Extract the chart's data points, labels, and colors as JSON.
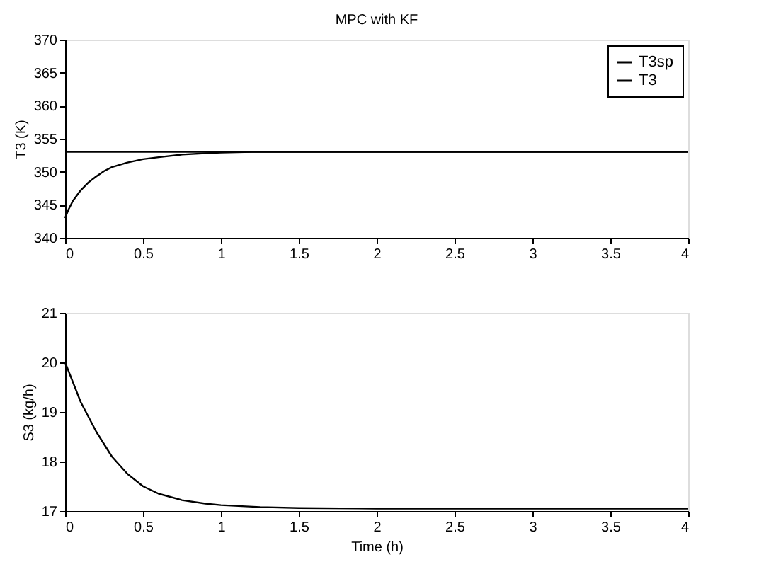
{
  "chart_data": [
    {
      "type": "line",
      "title": "MPC with KF",
      "ylabel": "T3 (K)",
      "xlim": [
        0,
        4
      ],
      "xticks": [
        0,
        0.5,
        1,
        1.5,
        2,
        2.5,
        3,
        3.5,
        4
      ],
      "ylim": [
        340,
        370
      ],
      "yticks": [
        340,
        345,
        350,
        355,
        360,
        365,
        370
      ],
      "legend": "top right",
      "grid": false,
      "series": [
        {
          "name": "T3sp",
          "color": "#000000",
          "x": [
            0,
            4
          ],
          "values": [
            353,
            353
          ]
        },
        {
          "name": "T3",
          "color": "#000000",
          "x": [
            0,
            0.02,
            0.05,
            0.1,
            0.15,
            0.2,
            0.25,
            0.3,
            0.4,
            0.5,
            0.6,
            0.75,
            0.9,
            1,
            1.2,
            1.5,
            4
          ],
          "values": [
            343,
            344.2,
            345.6,
            347.2,
            348.4,
            349.3,
            350.1,
            350.7,
            351.4,
            351.9,
            352.2,
            352.6,
            352.8,
            352.9,
            353,
            353,
            353
          ]
        }
      ]
    },
    {
      "type": "line",
      "xlabel": "Time (h)",
      "ylabel": "S3 (kg/h)",
      "xlim": [
        0,
        4
      ],
      "xticks": [
        0,
        0.5,
        1,
        1.5,
        2,
        2.5,
        3,
        3.5,
        4
      ],
      "ylim": [
        17,
        21
      ],
      "yticks": [
        17,
        18,
        19,
        20,
        21
      ],
      "grid": false,
      "series": [
        {
          "color": "#000000",
          "x": [
            0,
            0.05,
            0.1,
            0.15,
            0.2,
            0.25,
            0.3,
            0.4,
            0.5,
            0.6,
            0.75,
            0.9,
            1,
            1.25,
            1.5,
            2,
            3,
            4
          ],
          "values": [
            20,
            19.6,
            19.2,
            18.9,
            18.6,
            18.35,
            18.1,
            17.75,
            17.5,
            17.35,
            17.22,
            17.15,
            17.12,
            17.08,
            17.06,
            17.05,
            17.05,
            17.05
          ]
        }
      ]
    }
  ]
}
